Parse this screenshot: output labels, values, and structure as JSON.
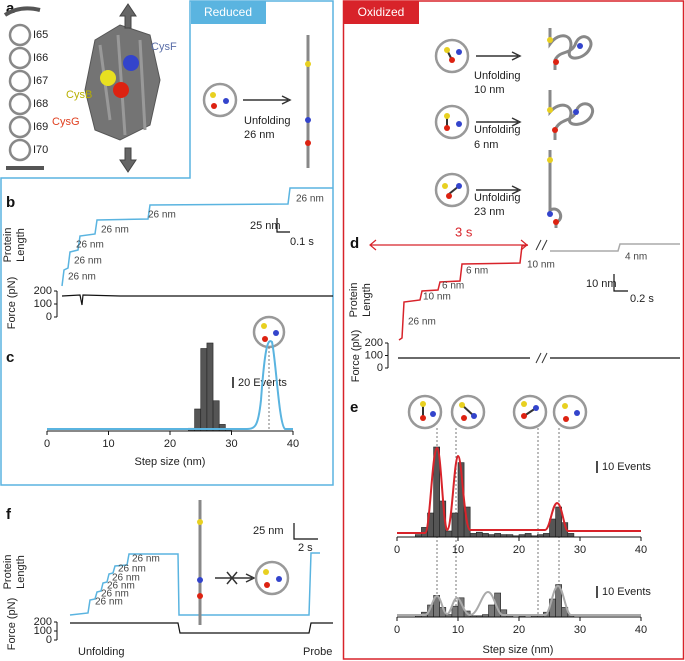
{
  "a": {
    "label": "a",
    "residues": [
      "I65",
      "I66",
      "I67",
      "I68",
      "I69",
      "I70"
    ],
    "cys_b": "CysB",
    "cys_f": "CysF",
    "cys_g": "CysG"
  },
  "reduced": {
    "title": "Reduced",
    "unfolding": "Unfolding",
    "step": "26 nm"
  },
  "oxidized": {
    "title": "Oxidized",
    "events": [
      {
        "unfolding": "Unfolding",
        "step": "10 nm"
      },
      {
        "unfolding": "Unfolding",
        "step": "6 nm"
      },
      {
        "unfolding": "Unfolding",
        "step": "23 nm"
      }
    ]
  },
  "b": {
    "label": "b",
    "y_label": [
      "Protein",
      "Length"
    ],
    "steps": [
      "26 nm",
      "26 nm",
      "26 nm",
      "26 nm",
      "26 nm",
      "26 nm"
    ],
    "scale_y": "25 nm",
    "scale_x": "0.1 s",
    "force_label": "Force (pN)",
    "force_ylim": [
      0,
      200
    ],
    "force_ticks": [
      200,
      100,
      0
    ]
  },
  "c": {
    "label": "c",
    "scale": "20 Events",
    "x_label": "Step size (nm)",
    "xlim": [
      0,
      40
    ],
    "xticks": [
      0,
      10,
      20,
      30,
      40
    ],
    "ylim": [
      0,
      200
    ],
    "bins": [
      23,
      24,
      25,
      26,
      27,
      28,
      29,
      30
    ],
    "counts": [
      5,
      40,
      150,
      160,
      55,
      12,
      3
    ]
  },
  "d": {
    "label": "d",
    "gap": "3 s",
    "steps": [
      "26 nm",
      "10 nm",
      "6 nm",
      "6 nm",
      "10 nm",
      "4 nm"
    ],
    "scale_y": "10 nm",
    "scale_x": "0.2 s",
    "y_label": [
      "Protein",
      "Length"
    ],
    "force_label": "Force (pN)",
    "force_ylim": [
      0,
      200
    ],
    "force_ticks": [
      200,
      100,
      0
    ]
  },
  "e": {
    "label": "e",
    "x_label": "Step size (nm)",
    "xlim": [
      0,
      40
    ],
    "xticks": [
      0,
      10,
      20,
      30,
      40
    ],
    "histograms": [
      {
        "scale": "10 Events",
        "ylim": [
          0,
          80
        ],
        "bins": [
          3,
          4,
          5,
          6,
          7,
          8,
          9,
          10,
          11,
          12,
          13,
          14,
          15,
          16,
          17,
          18,
          19,
          20,
          21,
          22,
          23,
          24,
          25,
          26,
          27,
          28,
          29
        ],
        "counts": [
          2,
          8,
          20,
          75,
          30,
          5,
          20,
          62,
          25,
          3,
          4,
          3,
          2,
          3,
          2,
          2,
          1,
          2,
          3,
          1,
          2,
          3,
          15,
          25,
          12,
          3
        ]
      },
      {
        "scale": "10 Events",
        "ylim": [
          0,
          40
        ],
        "bins": [
          3,
          4,
          5,
          6,
          7,
          8,
          9,
          10,
          11,
          12,
          13,
          14,
          15,
          16,
          17,
          18,
          19,
          20,
          21,
          22,
          23,
          24,
          25,
          26,
          27,
          28,
          29
        ],
        "counts": [
          1,
          4,
          10,
          18,
          8,
          2,
          9,
          16,
          5,
          1,
          1,
          2,
          10,
          20,
          6,
          1,
          0,
          1,
          0,
          1,
          1,
          4,
          15,
          27,
          8,
          2
        ]
      }
    ]
  },
  "f": {
    "label": "f",
    "scale_y": "25 nm",
    "scale_x": "2 s",
    "steps": [
      "26 nm",
      "26 nm",
      "26 nm",
      "26 nm",
      "26 nm",
      "26 nm"
    ],
    "y_label": [
      "Protein",
      "Length"
    ],
    "force_label": "Force (pN)",
    "force_ylim": [
      0,
      200
    ],
    "force_ticks": [
      200,
      100,
      0
    ],
    "phases": [
      "Unfolding",
      "Probe"
    ]
  }
}
